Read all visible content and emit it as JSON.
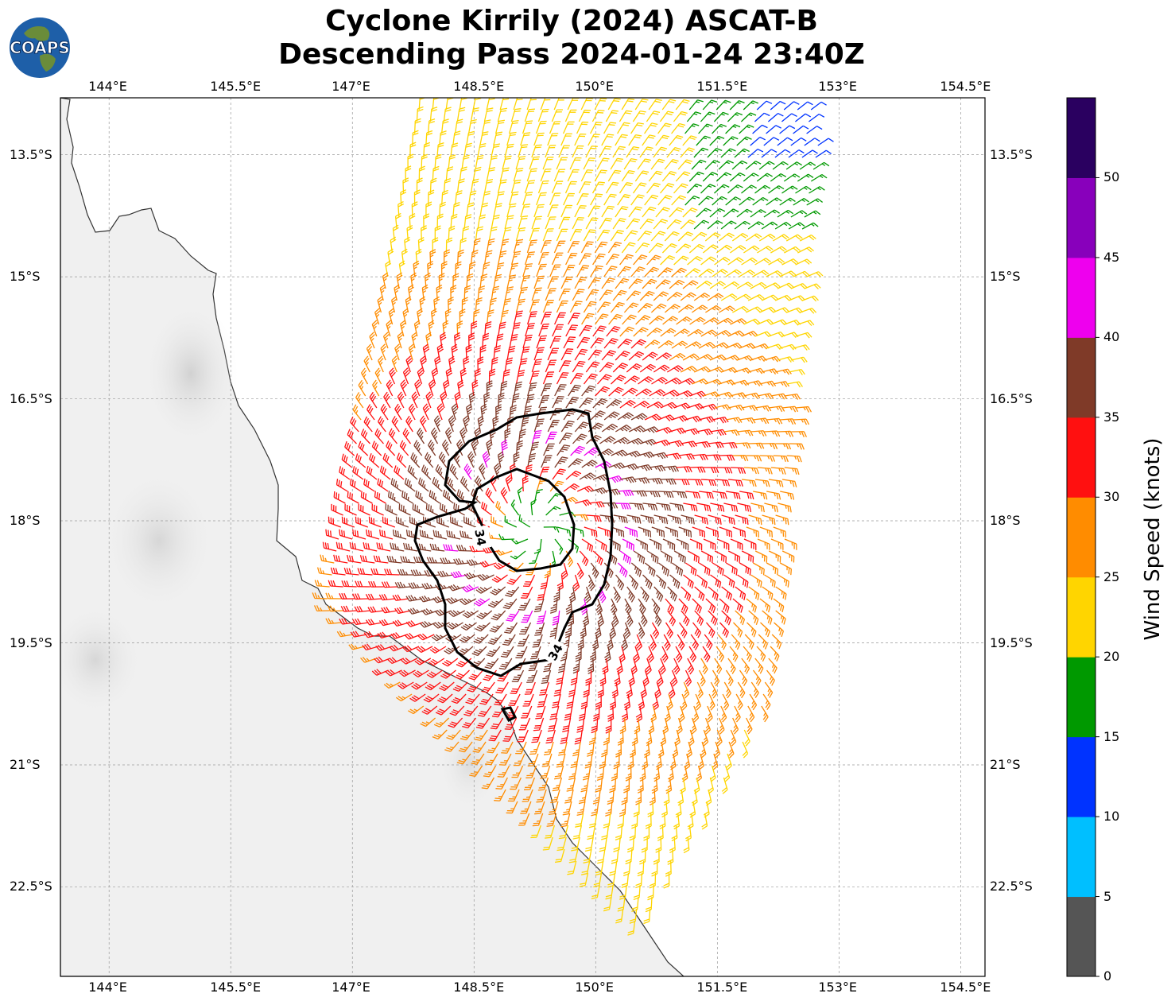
{
  "title": {
    "line1": "Cyclone Kirrily (2024) ASCAT-B",
    "line2": "Descending Pass 2024-01-24 23:40Z"
  },
  "logo": {
    "text": "COAPS",
    "icon": "globe-logo-icon"
  },
  "axes": {
    "lon_ticks": [
      "144°E",
      "145.5°E",
      "147°E",
      "148.5°E",
      "150°E",
      "151.5°E",
      "153°E",
      "154.5°E"
    ],
    "lat_ticks": [
      "13.5°S",
      "15°S",
      "16.5°S",
      "18°S",
      "19.5°S",
      "21°S",
      "22.5°S"
    ],
    "lon_range": [
      143.4,
      154.8
    ],
    "lat_range": [
      -12.8,
      -23.6
    ]
  },
  "contour": {
    "label": "34",
    "value_knots": 34
  },
  "colorbar": {
    "title": "Wind Speed (knots)",
    "ticks": [
      "0",
      "5",
      "10",
      "15",
      "20",
      "25",
      "30",
      "35",
      "40",
      "45",
      "50"
    ],
    "colors": [
      "#555555",
      "#00bfff",
      "#0033ff",
      "#009900",
      "#ffd500",
      "#ff8c00",
      "#ff1010",
      "#7f3a28",
      "#ee00ee",
      "#8800bb",
      "#2a0060"
    ]
  },
  "map": {
    "land_color": "#f0f0f0",
    "coast_color": "#333333",
    "grid": true,
    "storm_center_deg": [
      149.3,
      -18.1
    ]
  }
}
